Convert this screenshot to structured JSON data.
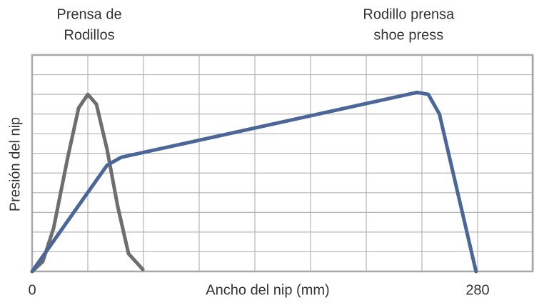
{
  "chart_data": {
    "type": "line",
    "xlabel": "Ancho del nip (mm)",
    "ylabel": "Presión del nip",
    "annotations": [
      [
        "Prensa de",
        "Rodillos"
      ],
      [
        "Rodillo prensa",
        "shoe press"
      ]
    ],
    "xlim": [
      0,
      315
    ],
    "xticks": [
      0,
      {
        "value": 35,
        "label": null
      },
      {
        "value": 70,
        "label": null
      },
      {
        "value": 105,
        "label": null
      },
      {
        "value": 140,
        "label": null
      },
      {
        "value": 175,
        "label": null
      },
      {
        "value": 210,
        "label": null
      },
      {
        "value": 245,
        "label": null
      },
      280,
      {
        "value": 315,
        "label": null
      }
    ],
    "ylim": [
      0,
      11
    ],
    "yticks": [
      {
        "value": 0,
        "label": null
      },
      {
        "value": 1,
        "label": null
      },
      {
        "value": 2,
        "label": null
      },
      {
        "value": 3,
        "label": null
      },
      {
        "value": 4,
        "label": null
      },
      {
        "value": 5,
        "label": null
      },
      {
        "value": 6,
        "label": null
      },
      {
        "value": 7,
        "label": null
      },
      {
        "value": 8,
        "label": null
      },
      {
        "value": 9,
        "label": null
      },
      {
        "value": 10,
        "label": null
      },
      {
        "value": 11,
        "label": null
      }
    ],
    "grid": true,
    "series": [
      {
        "color": "#6e6e6e",
        "x": [
          0,
          6.7,
          13.5,
          22.4,
          29.2,
          35,
          40.4,
          47.1,
          53.8,
          60.6,
          69.6
        ],
        "values": [
          0,
          0.5,
          2.2,
          5.8,
          8.3,
          9.0,
          8.5,
          6.2,
          3.3,
          0.9,
          0.1
        ]
      },
      {
        "color": "#4a679b",
        "x": [
          0,
          47.1,
          56,
          242,
          249,
          256,
          279
        ],
        "values": [
          0,
          5.4,
          5.8,
          9.1,
          9.0,
          8.0,
          0
        ]
      }
    ]
  }
}
